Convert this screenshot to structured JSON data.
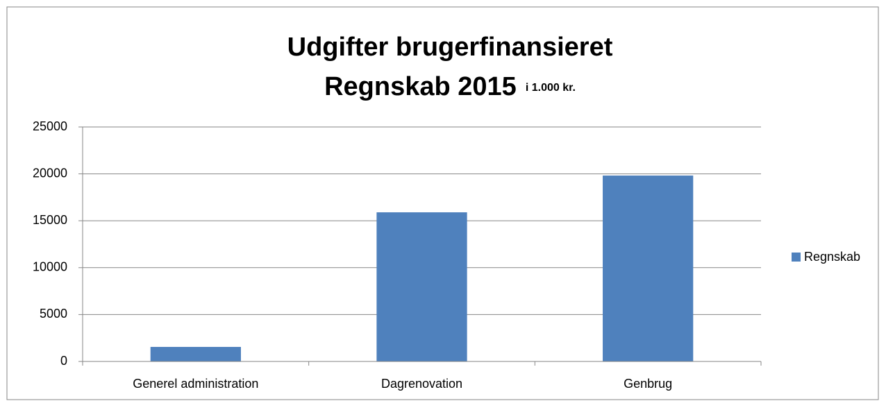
{
  "chart_data": {
    "type": "bar",
    "title": "Udgifter brugerfinansieret",
    "subtitle": "Regnskab 2015",
    "unit_note": "i 1.000 kr.",
    "categories": [
      "Generel administration",
      "Dagrenovation",
      "Genbrug"
    ],
    "series": [
      {
        "name": "Regnskab",
        "color": "#4f81bd",
        "values": [
          1550,
          15900,
          19820
        ]
      }
    ],
    "ylim": [
      0,
      25000
    ],
    "yticks": [
      0,
      5000,
      10000,
      15000,
      20000,
      25000
    ],
    "grid": true,
    "legend": "right"
  }
}
